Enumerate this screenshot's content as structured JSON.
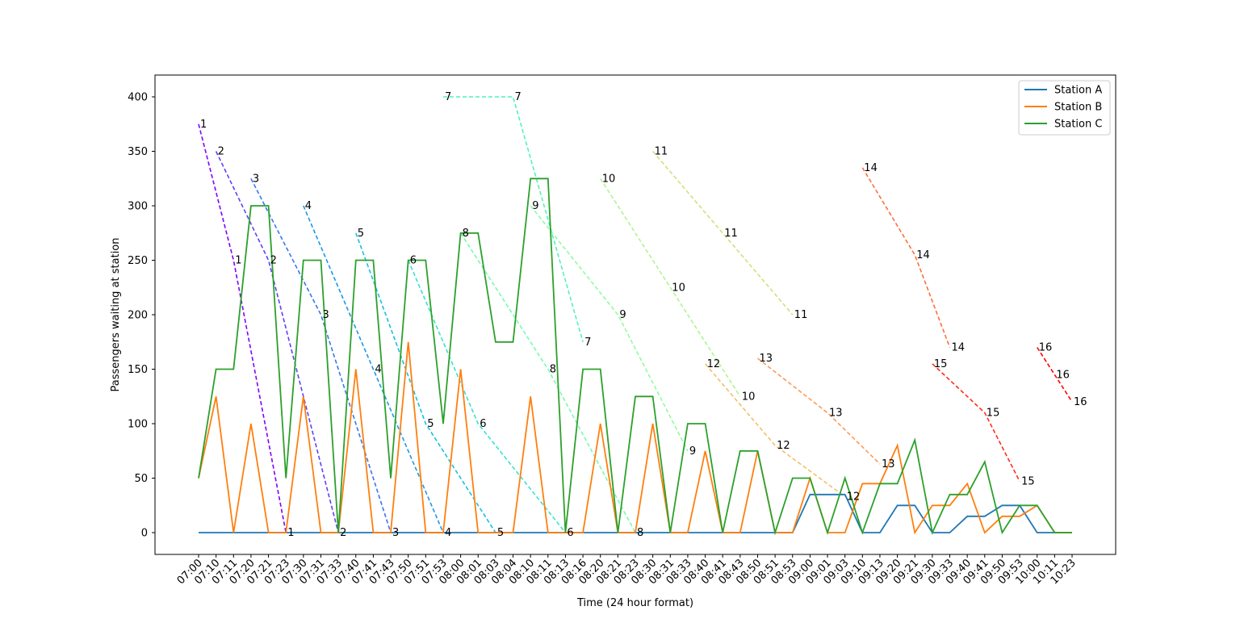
{
  "chart_data": {
    "type": "line",
    "title": "",
    "xlabel": "Time (24 hour format)",
    "ylabel": "Passengers waiting at station",
    "categories": [
      "07:00",
      "07:10",
      "07:11",
      "07:20",
      "07:21",
      "07:23",
      "07:30",
      "07:31",
      "07:33",
      "07:40",
      "07:41",
      "07:43",
      "07:50",
      "07:51",
      "07:53",
      "08:00",
      "08:01",
      "08:03",
      "08:04",
      "08:10",
      "08:11",
      "08:13",
      "08:16",
      "08:20",
      "08:21",
      "08:23",
      "08:30",
      "08:31",
      "08:33",
      "08:40",
      "08:41",
      "08:43",
      "08:50",
      "08:51",
      "08:53",
      "09:00",
      "09:01",
      "09:03",
      "09:10",
      "09:13",
      "09:20",
      "09:21",
      "09:30",
      "09:33",
      "09:40",
      "09:41",
      "09:50",
      "09:53",
      "10:00",
      "10:11",
      "10:23"
    ],
    "y_ticks": [
      0,
      50,
      100,
      150,
      200,
      250,
      300,
      350,
      400
    ],
    "ylim": [
      -20,
      420
    ],
    "grid": false,
    "legend_position": "top-right",
    "series": [
      {
        "name": "Station A",
        "color": "#1f77b4",
        "values": [
          0,
          0,
          0,
          0,
          0,
          0,
          0,
          0,
          0,
          0,
          0,
          0,
          0,
          0,
          0,
          0,
          0,
          0,
          0,
          0,
          0,
          0,
          0,
          0,
          0,
          0,
          0,
          0,
          0,
          0,
          0,
          0,
          0,
          0,
          0,
          35,
          35,
          35,
          0,
          0,
          25,
          25,
          0,
          0,
          15,
          15,
          25,
          25,
          0,
          0,
          0
        ]
      },
      {
        "name": "Station B",
        "color": "#ff7f0e",
        "values": [
          50,
          125,
          0,
          100,
          0,
          0,
          125,
          0,
          0,
          150,
          0,
          0,
          175,
          0,
          0,
          150,
          0,
          0,
          0,
          125,
          0,
          0,
          0,
          100,
          0,
          0,
          100,
          0,
          0,
          75,
          0,
          0,
          75,
          0,
          0,
          50,
          0,
          0,
          45,
          45,
          80,
          0,
          25,
          25,
          45,
          0,
          15,
          15,
          25,
          0,
          0
        ]
      },
      {
        "name": "Station C",
        "color": "#2ca02c",
        "values": [
          50,
          150,
          150,
          300,
          300,
          50,
          250,
          250,
          0,
          250,
          250,
          50,
          250,
          250,
          100,
          275,
          275,
          175,
          175,
          325,
          325,
          0,
          150,
          150,
          0,
          125,
          125,
          0,
          100,
          100,
          0,
          75,
          75,
          0,
          50,
          50,
          0,
          50,
          0,
          45,
          45,
          85,
          0,
          35,
          35,
          65,
          0,
          25,
          25,
          0,
          0
        ]
      }
    ],
    "trips": [
      {
        "id": "1",
        "color": "#7f00ff",
        "points": [
          {
            "x": "07:00",
            "y": 375
          },
          {
            "x": "07:11",
            "y": 250
          },
          {
            "x": "07:23",
            "y": 0
          }
        ]
      },
      {
        "id": "2",
        "color": "#5a41fb",
        "points": [
          {
            "x": "07:10",
            "y": 350
          },
          {
            "x": "07:21",
            "y": 250
          },
          {
            "x": "07:33",
            "y": 0
          }
        ]
      },
      {
        "id": "3",
        "color": "#3577f2",
        "points": [
          {
            "x": "07:20",
            "y": 325
          },
          {
            "x": "07:31",
            "y": 200
          },
          {
            "x": "07:43",
            "y": 0
          }
        ]
      },
      {
        "id": "4",
        "color": "#1b97e8",
        "points": [
          {
            "x": "07:30",
            "y": 300
          },
          {
            "x": "07:41",
            "y": 150
          },
          {
            "x": "07:53",
            "y": 0
          }
        ]
      },
      {
        "id": "5",
        "color": "#12c2dd",
        "points": [
          {
            "x": "07:40",
            "y": 275
          },
          {
            "x": "07:51",
            "y": 100
          },
          {
            "x": "08:03",
            "y": 0
          }
        ]
      },
      {
        "id": "6",
        "color": "#37e2cf",
        "points": [
          {
            "x": "07:50",
            "y": 250
          },
          {
            "x": "08:01",
            "y": 100
          },
          {
            "x": "08:13",
            "y": 0
          }
        ]
      },
      {
        "id": "7",
        "color": "#4df4bd",
        "points": [
          {
            "x": "07:53",
            "y": 400
          },
          {
            "x": "08:04",
            "y": 400
          },
          {
            "x": "08:16",
            "y": 175
          }
        ]
      },
      {
        "id": "8",
        "color": "#75fbb0",
        "points": [
          {
            "x": "08:00",
            "y": 275
          },
          {
            "x": "08:11",
            "y": 150
          },
          {
            "x": "08:23",
            "y": 0
          }
        ]
      },
      {
        "id": "9",
        "color": "#90fc9c",
        "points": [
          {
            "x": "08:10",
            "y": 300
          },
          {
            "x": "08:21",
            "y": 200
          },
          {
            "x": "08:33",
            "y": 75
          }
        ]
      },
      {
        "id": "10",
        "color": "#aef58e",
        "points": [
          {
            "x": "08:20",
            "y": 325
          },
          {
            "x": "08:31",
            "y": 225
          },
          {
            "x": "08:43",
            "y": 125
          }
        ]
      },
      {
        "id": "11",
        "color": "#cde27a",
        "points": [
          {
            "x": "08:30",
            "y": 350
          },
          {
            "x": "08:41",
            "y": 275
          },
          {
            "x": "08:53",
            "y": 200
          }
        ]
      },
      {
        "id": "12",
        "color": "#f4be6a",
        "points": [
          {
            "x": "08:40",
            "y": 155
          },
          {
            "x": "08:51",
            "y": 80
          },
          {
            "x": "09:03",
            "y": 33
          }
        ]
      },
      {
        "id": "13",
        "color": "#fe9a55",
        "points": [
          {
            "x": "08:50",
            "y": 160
          },
          {
            "x": "09:01",
            "y": 110
          },
          {
            "x": "09:13",
            "y": 63
          }
        ]
      },
      {
        "id": "14",
        "color": "#ff6d3d",
        "points": [
          {
            "x": "09:10",
            "y": 335
          },
          {
            "x": "09:21",
            "y": 255
          },
          {
            "x": "09:33",
            "y": 170
          }
        ]
      },
      {
        "id": "15",
        "color": "#ff2d19",
        "points": [
          {
            "x": "09:30",
            "y": 155
          },
          {
            "x": "09:41",
            "y": 110
          },
          {
            "x": "09:53",
            "y": 47
          }
        ]
      },
      {
        "id": "16",
        "color": "#ff0000",
        "points": [
          {
            "x": "10:00",
            "y": 170
          },
          {
            "x": "10:11",
            "y": 145
          },
          {
            "x": "10:23",
            "y": 120
          }
        ]
      }
    ]
  }
}
